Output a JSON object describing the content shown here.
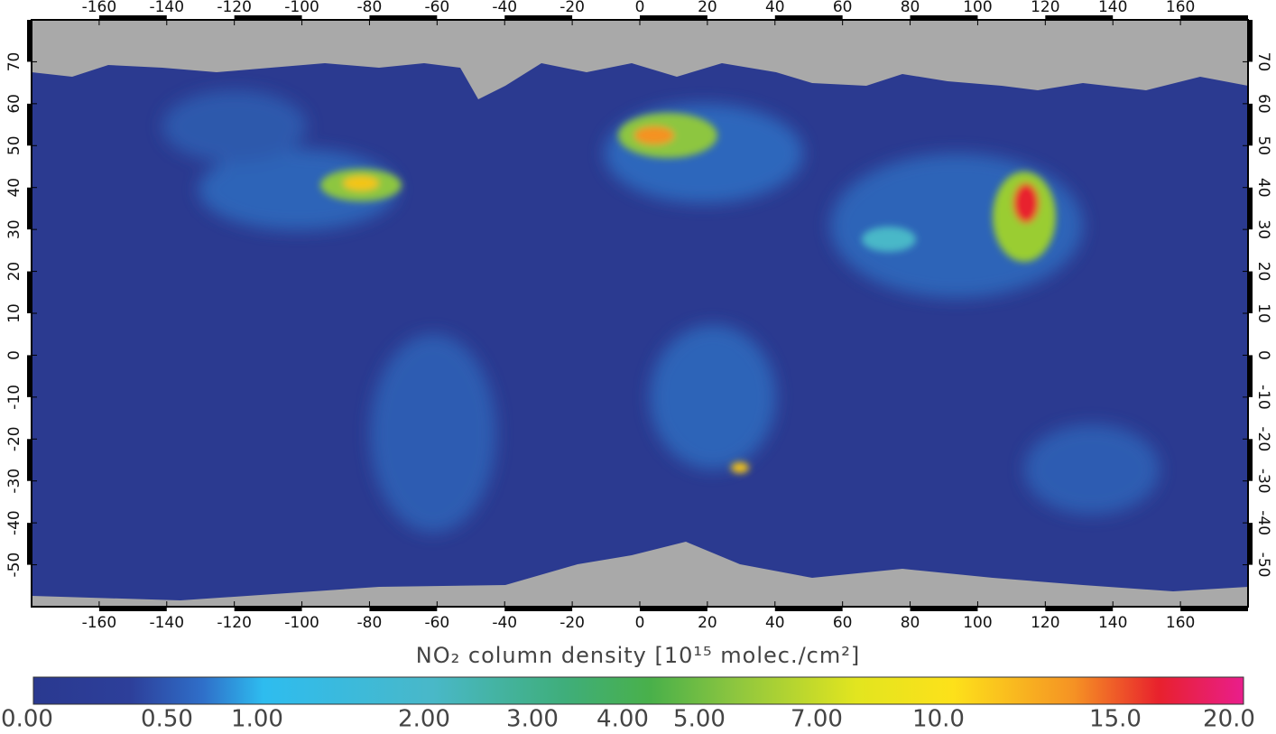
{
  "map": {
    "title": "NO₂ column density [10¹⁵ molec./cm²]",
    "xlim": [
      -180,
      180
    ],
    "ylim": [
      -60,
      80
    ],
    "xticks": [
      -160,
      -140,
      -120,
      -100,
      -80,
      -60,
      -40,
      -20,
      0,
      20,
      40,
      60,
      80,
      100,
      120,
      140,
      160
    ],
    "yticks": [
      -50,
      -40,
      -30,
      -20,
      -10,
      0,
      10,
      20,
      30,
      40,
      50,
      60,
      70
    ],
    "colorbar_ticks": [
      {
        "value": 0,
        "label": "0.00"
      },
      {
        "value": 0.5,
        "label": "0.50"
      },
      {
        "value": 1,
        "label": "1.00"
      },
      {
        "value": 2,
        "label": "2.00"
      },
      {
        "value": 3,
        "label": "3.00"
      },
      {
        "value": 4,
        "label": "4.00"
      },
      {
        "value": 5,
        "label": "5.00"
      },
      {
        "value": 7,
        "label": "7.00"
      },
      {
        "value": 10,
        "label": "10.0"
      },
      {
        "value": 15,
        "label": "15.0"
      },
      {
        "value": 20,
        "label": "20.0"
      }
    ]
  }
}
